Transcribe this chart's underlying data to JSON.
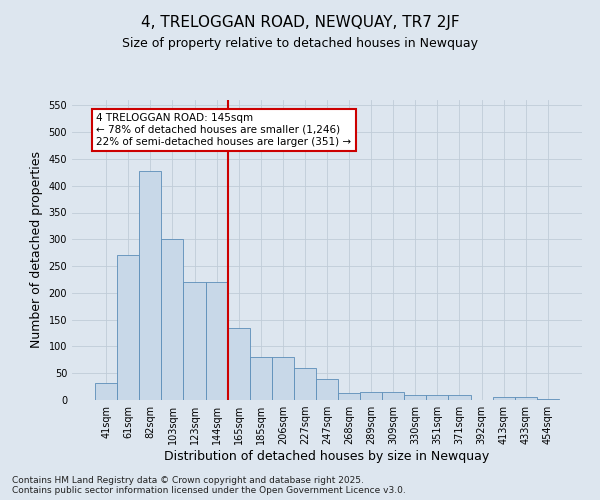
{
  "title_line1": "4, TRELOGGAN ROAD, NEWQUAY, TR7 2JF",
  "title_line2": "Size of property relative to detached houses in Newquay",
  "xlabel": "Distribution of detached houses by size in Newquay",
  "ylabel": "Number of detached properties",
  "bar_labels": [
    "41sqm",
    "61sqm",
    "82sqm",
    "103sqm",
    "123sqm",
    "144sqm",
    "165sqm",
    "185sqm",
    "206sqm",
    "227sqm",
    "247sqm",
    "268sqm",
    "289sqm",
    "309sqm",
    "330sqm",
    "351sqm",
    "371sqm",
    "392sqm",
    "413sqm",
    "433sqm",
    "454sqm"
  ],
  "bar_values": [
    32,
    270,
    428,
    300,
    220,
    220,
    135,
    80,
    80,
    60,
    40,
    13,
    15,
    15,
    9,
    9,
    9,
    0,
    5,
    5,
    2
  ],
  "bar_color": "#c8d8e8",
  "bar_edge_color": "#5b8db8",
  "vline_x": 5.5,
  "vline_color": "#cc0000",
  "annotation_title": "4 TRELOGGAN ROAD: 145sqm",
  "annotation_line1": "← 78% of detached houses are smaller (1,246)",
  "annotation_line2": "22% of semi-detached houses are larger (351) →",
  "annotation_box_facecolor": "#ffffff",
  "annotation_box_edge": "#cc0000",
  "ylim": [
    0,
    560
  ],
  "yticks": [
    0,
    50,
    100,
    150,
    200,
    250,
    300,
    350,
    400,
    450,
    500,
    550
  ],
  "grid_color": "#c0ccd8",
  "background_color": "#dde6ef",
  "footer_line1": "Contains HM Land Registry data © Crown copyright and database right 2025.",
  "footer_line2": "Contains public sector information licensed under the Open Government Licence v3.0.",
  "title_fontsize": 11,
  "subtitle_fontsize": 9,
  "tick_fontsize": 7,
  "label_fontsize": 9,
  "footer_fontsize": 6.5,
  "annot_fontsize": 7.5
}
